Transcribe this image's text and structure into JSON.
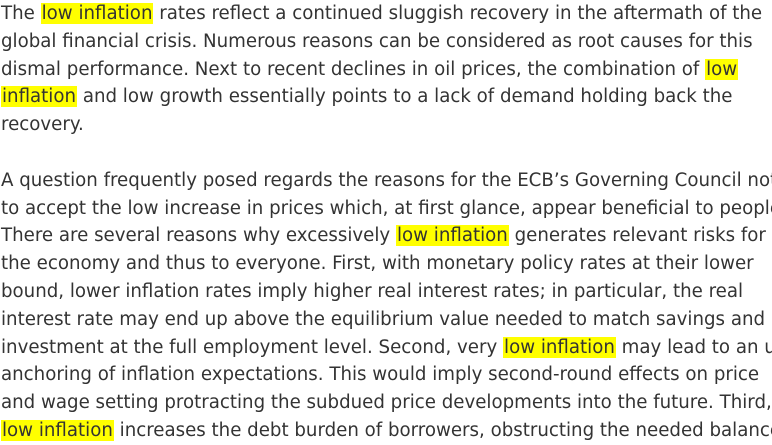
{
  "highlight_color": "#ffff00",
  "paragraphs": [
    {
      "lines": [
        [
          {
            "text": "The "
          },
          {
            "text": "low inflation",
            "hl": true
          },
          {
            "text": " rates reflect a continued sluggish recovery in the aftermath of the"
          }
        ],
        [
          {
            "text": "global financial crisis. Numerous reasons can be considered as root causes for this"
          }
        ],
        [
          {
            "text": "dismal performance. Next to recent declines in oil prices, the combination of "
          },
          {
            "text": "low",
            "hl": true
          }
        ],
        [
          {
            "text": "inflation",
            "hl": true
          },
          {
            "text": " and low growth essentially points to a lack of demand holding back the"
          }
        ],
        [
          {
            "text": "recovery."
          }
        ]
      ]
    },
    {
      "lines": [
        [
          {
            "text": "A question frequently posed regards the reasons for the ECB’s Governing Council not"
          }
        ],
        [
          {
            "text": "to accept the low increase in prices which, at first glance, appear beneficial to people."
          }
        ],
        [
          {
            "text": "There are several reasons why excessively "
          },
          {
            "text": "low inflation",
            "hl": true
          },
          {
            "text": " generates relevant risks for"
          }
        ],
        [
          {
            "text": "the economy and thus to everyone. First, with monetary policy rates at their lower"
          }
        ],
        [
          {
            "text": "bound, lower inflation rates imply higher real interest rates; in particular, the real"
          }
        ],
        [
          {
            "text": "interest rate may end up above the equilibrium value needed to match savings and"
          }
        ],
        [
          {
            "text": "investment at the full employment level. Second, very "
          },
          {
            "text": "low inflation",
            "hl": true
          },
          {
            "text": " may lead to an un-"
          }
        ],
        [
          {
            "text": "anchoring of inflation expectations. This would imply second-round effects on price"
          }
        ],
        [
          {
            "text": "and wage setting protracting the subdued price developments into the future. Third,"
          }
        ],
        [
          {
            "text": "low inflation",
            "hl": true
          },
          {
            "text": " increases the debt burden of borrowers, obstructing the needed balance"
          }
        ]
      ]
    }
  ]
}
